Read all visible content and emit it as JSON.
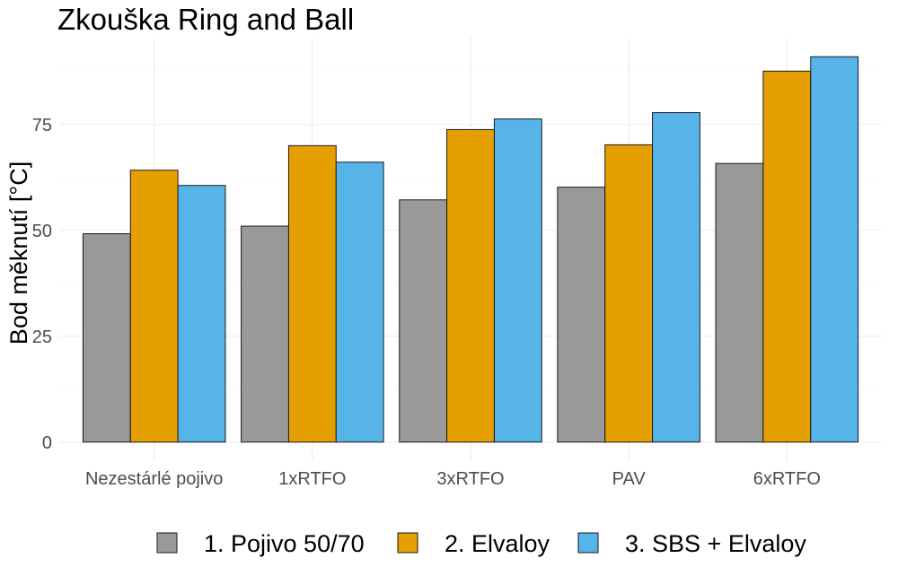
{
  "chart_data": {
    "type": "bar",
    "title": "Zkouška Ring and Ball",
    "xlabel": "",
    "ylabel": "Bod měknutí [°C]",
    "categories": [
      "Nezestárlé pojivo",
      "1xRTFO",
      "3xRTFO",
      "PAV",
      "6xRTFO"
    ],
    "series": [
      {
        "name": "1. Pojivo 50/70",
        "color": "#999999",
        "values": [
          49.2,
          51.0,
          57.2,
          60.2,
          65.8
        ]
      },
      {
        "name": "2. Elvaloy",
        "color": "#E69F00",
        "values": [
          64.2,
          70.0,
          73.8,
          70.2,
          87.6
        ]
      },
      {
        "name": "3. SBS +  Elvaloy",
        "color": "#56B4E9",
        "values": [
          60.6,
          66.1,
          76.3,
          77.8,
          91.0
        ]
      }
    ],
    "yticks": [
      0,
      25,
      50,
      75
    ],
    "ylim": [
      -4.5,
      95.5
    ],
    "grid": true,
    "legend": "bottom"
  }
}
